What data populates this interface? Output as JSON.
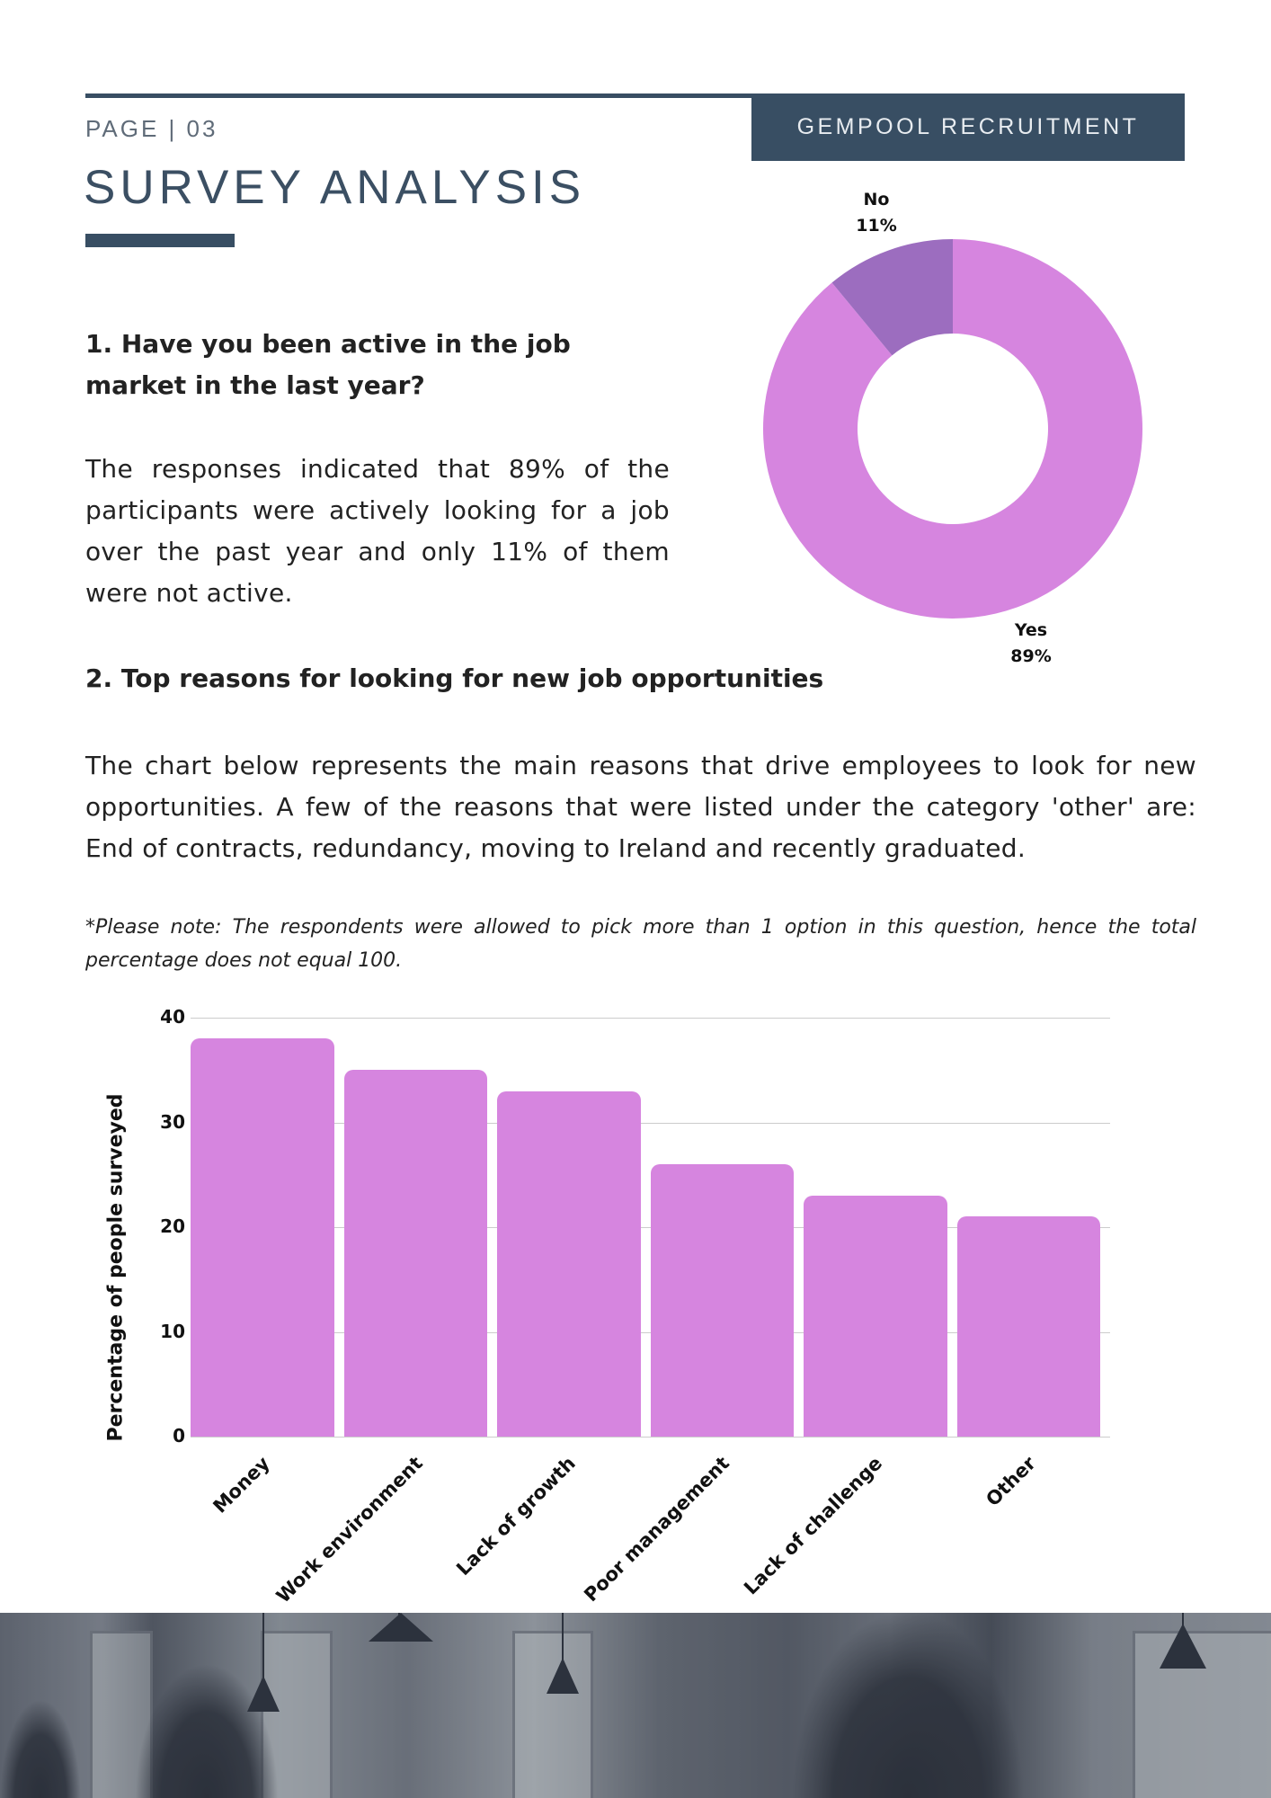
{
  "header": {
    "page_label": "PAGE | 03",
    "title": "SURVEY ANALYSIS",
    "brand": "GEMPOOL RECRUITMENT"
  },
  "colors": {
    "navy": "#384e63",
    "bar_pink": "#d685df",
    "donut_yes": "#d685df",
    "donut_no": "#9c6dbf",
    "text": "#222222"
  },
  "section1": {
    "heading": "1. Have you been active in the job market in the last year?",
    "body": "The responses indicated that 89% of the participants were actively looking for a job over the past year and only 11% of them were not active."
  },
  "donut": {
    "no_label": "No",
    "no_value": "11%",
    "yes_label": "Yes",
    "yes_value": "89%"
  },
  "section2": {
    "heading": "2. Top reasons for looking for new job opportunities",
    "body": "The chart below represents the main reasons that drive employees to look for new opportunities. A few of the reasons that were listed under the category 'other' are: End of contracts, redundancy, moving to Ireland and recently graduated.",
    "note": "*Please note: The respondents were allowed to pick more than 1 option in this question, hence the total percentage does not equal 100."
  },
  "bar_chart": {
    "ylabel": "Percentage of people surveyed",
    "yticks": [
      "40",
      "30",
      "20",
      "10",
      "0"
    ],
    "categories": [
      "Money",
      "Work environment",
      "Lack of growth",
      "Poor management",
      "Lack of challenge",
      "Other"
    ]
  },
  "chart_data": [
    {
      "type": "pie",
      "title": "Have you been active in the job market in the last year?",
      "categories": [
        "Yes",
        "No"
      ],
      "values": [
        89,
        11
      ],
      "donut": true,
      "colors": [
        "#d685df",
        "#9c6dbf"
      ],
      "labels": [
        "Yes 89%",
        "No 11%"
      ]
    },
    {
      "type": "bar",
      "title": "Top reasons for looking for new job opportunities",
      "categories": [
        "Money",
        "Work environment",
        "Lack of growth",
        "Poor management",
        "Lack of challenge",
        "Other"
      ],
      "values": [
        38,
        35,
        33,
        26,
        23,
        21
      ],
      "xlabel": "",
      "ylabel": "Percentage of people surveyed",
      "ylim": [
        0,
        40
      ],
      "yticks": [
        0,
        10,
        20,
        30,
        40
      ],
      "grid": true,
      "legend": "none",
      "color": "#d685df"
    }
  ]
}
